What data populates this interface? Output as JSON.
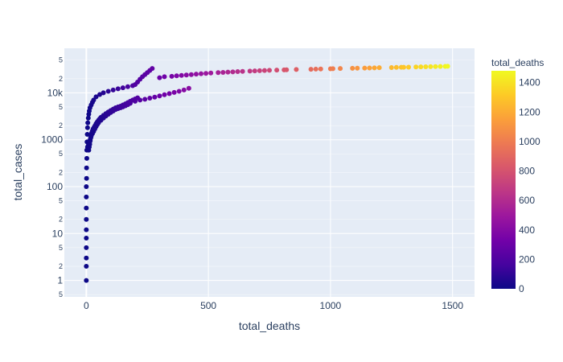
{
  "chart_data": {
    "type": "scatter",
    "xlabel": "total_deaths",
    "ylabel": "total_cases",
    "xlim": [
      -90,
      1590
    ],
    "ylim_log10": [
      -0.35,
      4.95
    ],
    "y_scale": "log",
    "x_ticks": [
      0,
      500,
      1000,
      1500
    ],
    "x_tick_labels": [
      "0",
      "500",
      "1000",
      "1500"
    ],
    "y_major_ticks": [
      1,
      10,
      100,
      1000,
      10000
    ],
    "y_major_labels": [
      "1",
      "10",
      "100",
      "1000",
      "10k"
    ],
    "y_minor_ticks": [
      0.5,
      2,
      5,
      20,
      50,
      200,
      500,
      2000,
      5000,
      20000,
      50000
    ],
    "y_minor_labels": [
      "5",
      "2",
      "5",
      "2",
      "5",
      "2",
      "5",
      "2",
      "5",
      "2",
      "5"
    ],
    "grid": true,
    "colorbar": {
      "title": "total_deaths",
      "range": [
        0,
        1480
      ],
      "ticks": [
        0,
        200,
        400,
        600,
        800,
        1000,
        1200,
        1400
      ],
      "tick_labels": [
        "0",
        "200",
        "400",
        "600",
        "800",
        "1000",
        "1200",
        "1400"
      ],
      "colorscale": [
        "#0d0887",
        "#46039f",
        "#7201a8",
        "#9c179e",
        "#bd3786",
        "#d8576b",
        "#ed7953",
        "#fb9f3a",
        "#fdca26",
        "#f0f921"
      ]
    },
    "series": [
      {
        "x": [
          0,
          0,
          0,
          0,
          0,
          0,
          0,
          0,
          0,
          0,
          1,
          1,
          2,
          2,
          3,
          4,
          5,
          6,
          8,
          10,
          12,
          15,
          20,
          25,
          30,
          40,
          55,
          70,
          90,
          110,
          130,
          150,
          170,
          190,
          200,
          210,
          220,
          230,
          240,
          250,
          260,
          270
        ],
        "y": [
          1,
          2,
          3,
          5,
          8,
          12,
          20,
          35,
          60,
          100,
          150,
          250,
          400,
          600,
          900,
          1300,
          1800,
          2300,
          2900,
          3500,
          4100,
          4800,
          5500,
          6300,
          7000,
          8200,
          9200,
          10000,
          10800,
          11500,
          12200,
          12800,
          13500,
          14200,
          15000,
          17000,
          19500,
          22000,
          24500,
          27000,
          30000,
          33000
        ]
      },
      {
        "x": [
          5,
          8,
          10,
          12,
          14,
          16,
          18,
          20,
          25,
          30,
          35,
          40,
          45,
          50,
          60,
          70,
          80,
          90,
          100,
          110,
          120,
          130,
          140,
          150,
          160,
          170,
          180,
          200,
          220,
          240,
          260,
          280,
          300,
          320,
          340,
          360,
          380,
          400,
          420
        ],
        "y": [
          700,
          750,
          800,
          850,
          900,
          1000,
          1100,
          1200,
          1350,
          1500,
          1700,
          1900,
          2100,
          2300,
          2600,
          2900,
          3200,
          3500,
          3800,
          4100,
          4400,
          4600,
          4800,
          5000,
          5300,
          5600,
          6000,
          6600,
          7000,
          7300,
          7700,
          8100,
          8600,
          9100,
          9600,
          10200,
          10800,
          11500,
          12500
        ]
      },
      {
        "x": [
          10,
          12,
          14,
          16,
          18,
          20,
          22,
          25,
          28,
          32,
          36,
          40,
          45,
          50,
          55,
          60,
          70,
          80,
          90,
          100,
          110,
          120,
          130,
          140,
          150,
          160,
          170,
          180,
          190,
          200,
          210
        ],
        "y": [
          600,
          700,
          800,
          950,
          1100,
          1250,
          1400,
          1550,
          1700,
          1850,
          2000,
          2200,
          2400,
          2600,
          2800,
          3000,
          3300,
          3600,
          3900,
          4200,
          4500,
          4800,
          5000,
          5200,
          5500,
          5800,
          6200,
          6600,
          7000,
          7400,
          7800
        ]
      },
      {
        "x": [
          300,
          320,
          350,
          370,
          390,
          410,
          430,
          450,
          470,
          490,
          510,
          540,
          560,
          580,
          600,
          620,
          640,
          670,
          690,
          710,
          730,
          750,
          780,
          810,
          820,
          860,
          920,
          940,
          960,
          1000,
          1010,
          1040,
          1090,
          1110,
          1140,
          1160,
          1180,
          1200,
          1250,
          1270,
          1290,
          1300,
          1320,
          1350,
          1370,
          1390,
          1410,
          1430,
          1450,
          1470,
          1480
        ],
        "y": [
          21000,
          22000,
          22500,
          23000,
          23500,
          24000,
          24500,
          25000,
          25500,
          26000,
          26500,
          27000,
          27300,
          27600,
          28000,
          28300,
          28600,
          29000,
          29300,
          29600,
          29900,
          30200,
          30500,
          30800,
          31000,
          31400,
          31800,
          32000,
          32200,
          32500,
          32700,
          33000,
          33300,
          33500,
          33700,
          33900,
          34100,
          34300,
          34600,
          34800,
          35000,
          35100,
          35300,
          35500,
          35700,
          35900,
          36100,
          36300,
          36500,
          36700,
          36900
        ]
      }
    ]
  }
}
